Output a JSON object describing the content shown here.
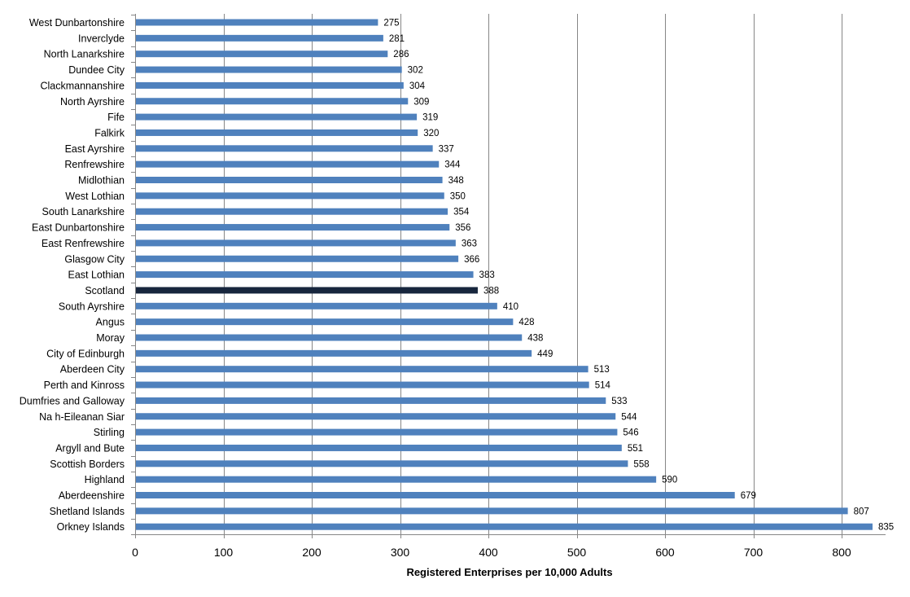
{
  "colors": {
    "bar": "#4F81BD",
    "highlight_bar": "#17263D",
    "grid": "#868686",
    "axis": "#868686"
  },
  "chart_data": {
    "type": "bar",
    "orientation": "horizontal",
    "title": "",
    "xlabel": "Registered Enterprises per 10,000 Adults",
    "ylabel": "",
    "xlim": [
      0,
      850
    ],
    "x_ticks": [
      0,
      100,
      200,
      300,
      400,
      500,
      600,
      700,
      800
    ],
    "grid": "vertical",
    "legend": "none",
    "data_labels": true,
    "highlight": "Scotland",
    "categories": [
      "West Dunbartonshire",
      "Inverclyde",
      "North Lanarkshire",
      "Dundee City",
      "Clackmannanshire",
      "North Ayrshire",
      "Fife",
      "Falkirk",
      "East Ayrshire",
      "Renfrewshire",
      "Midlothian",
      "West Lothian",
      "South Lanarkshire",
      "East Dunbartonshire",
      "East Renfrewshire",
      "Glasgow City",
      "East Lothian",
      "Scotland",
      "South Ayrshire",
      "Angus",
      "Moray",
      "City of Edinburgh",
      "Aberdeen City",
      "Perth and Kinross",
      "Dumfries and Galloway",
      "Na h-Eileanan Siar",
      "Stirling",
      "Argyll and Bute",
      "Scottish Borders",
      "Highland",
      "Aberdeenshire",
      "Shetland Islands",
      "Orkney Islands"
    ],
    "values": [
      275,
      281,
      286,
      302,
      304,
      309,
      319,
      320,
      337,
      344,
      348,
      350,
      354,
      356,
      363,
      366,
      383,
      388,
      410,
      428,
      438,
      449,
      513,
      514,
      533,
      544,
      546,
      551,
      558,
      590,
      679,
      807,
      835
    ]
  }
}
